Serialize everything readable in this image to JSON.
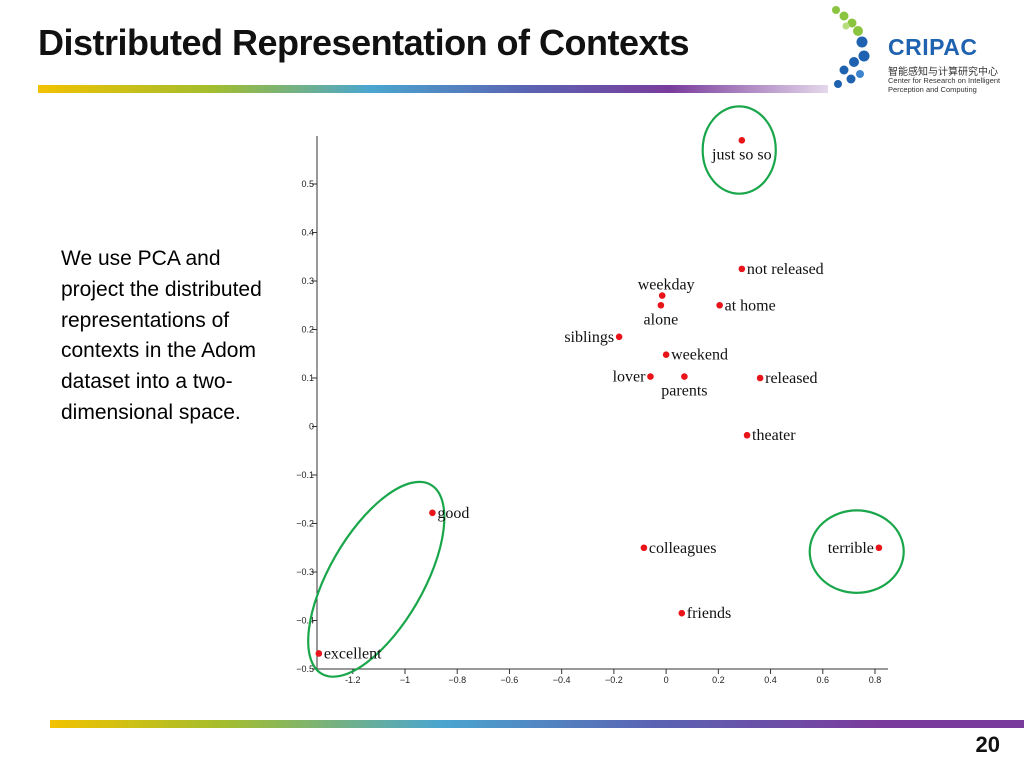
{
  "slide": {
    "title": "Distributed Representation of Contexts",
    "body": "We use PCA and project the distributed representations of contexts in the Adom dataset into a two-dimensional space.",
    "page_number": "20"
  },
  "logo": {
    "name": "CRIPAC",
    "name_cn": "智能感知与计算研究中心",
    "name_en": "Center for Research on Intelligent Perception and Computing",
    "colors": {
      "text": "#1f62b0",
      "dots_green": "#8bc53f",
      "dots_blue": "#1f62b0"
    }
  },
  "colors": {
    "point": "#e8141a",
    "highlight_circle": "#1aa64a",
    "bar_gradient": [
      "#f2c200",
      "#a3bd2e",
      "#4aa6cf",
      "#5a63b3",
      "#7a3c9c"
    ]
  },
  "chart_data": {
    "type": "scatter",
    "title": "",
    "xlabel": "",
    "ylabel": "",
    "xlim": [
      -1.35,
      0.85
    ],
    "ylim": [
      -0.5,
      0.6
    ],
    "x_ticks": [
      -1.2,
      -1,
      -0.8,
      -0.6,
      -0.4,
      -0.2,
      0,
      0.2,
      0.4,
      0.6,
      0.8
    ],
    "x_tick_labels": [
      "-1.2",
      "−1",
      "−0.8",
      "−0.6",
      "−0.4",
      "−0.2",
      "0",
      "0.2",
      "0.4",
      "0.6",
      "0.8"
    ],
    "y_ticks": [
      0.5,
      0.4,
      0.3,
      0.2,
      0.1,
      0,
      -0.1,
      -0.2,
      -0.3,
      -0.4,
      -0.5
    ],
    "y_tick_labels": [
      "0.5",
      "0.4",
      "0.3",
      "0.2",
      "0.1",
      "0",
      "−0.1",
      "−0.2",
      "−0.3",
      "−0.4",
      "−0.5"
    ],
    "grid": false,
    "points": [
      {
        "label": "just so so",
        "x": 0.29,
        "y": 0.59,
        "label_pos": "below"
      },
      {
        "label": "not released",
        "x": 0.29,
        "y": 0.325,
        "label_pos": "right"
      },
      {
        "label": "weekday",
        "x": -0.015,
        "y": 0.27,
        "label_pos": "above"
      },
      {
        "label": "alone",
        "x": -0.02,
        "y": 0.25,
        "label_pos": "below"
      },
      {
        "label": "at home",
        "x": 0.205,
        "y": 0.25,
        "label_pos": "right"
      },
      {
        "label": "siblings",
        "x": -0.18,
        "y": 0.185,
        "label_pos": "left"
      },
      {
        "label": "weekend",
        "x": 0.0,
        "y": 0.148,
        "label_pos": "right"
      },
      {
        "label": "lover",
        "x": -0.06,
        "y": 0.103,
        "label_pos": "left"
      },
      {
        "label": "parents",
        "x": 0.07,
        "y": 0.103,
        "label_pos": "below"
      },
      {
        "label": "released",
        "x": 0.36,
        "y": 0.1,
        "label_pos": "right"
      },
      {
        "label": "theater",
        "x": 0.31,
        "y": -0.018,
        "label_pos": "right"
      },
      {
        "label": "good",
        "x": -0.895,
        "y": -0.178,
        "label_pos": "right"
      },
      {
        "label": "colleagues",
        "x": -0.085,
        "y": -0.25,
        "label_pos": "right"
      },
      {
        "label": "terrible",
        "x": 0.815,
        "y": -0.25,
        "label_pos": "left"
      },
      {
        "label": "friends",
        "x": 0.06,
        "y": -0.385,
        "label_pos": "right"
      },
      {
        "label": "excellent",
        "x": -1.33,
        "y": -0.468,
        "label_pos": "right"
      }
    ],
    "highlights": [
      {
        "around": "just so so",
        "cx": 0.28,
        "cy": 0.57,
        "rx": 0.14,
        "ry": 0.09,
        "rotate": 0
      },
      {
        "around": "terrible",
        "cx": 0.73,
        "cy": -0.258,
        "rx": 0.18,
        "ry": 0.085,
        "rotate": 0
      },
      {
        "around": "good / excellent",
        "cx": -1.11,
        "cy": -0.315,
        "rx": 0.18,
        "ry": 0.225,
        "rotate": 30
      }
    ]
  }
}
